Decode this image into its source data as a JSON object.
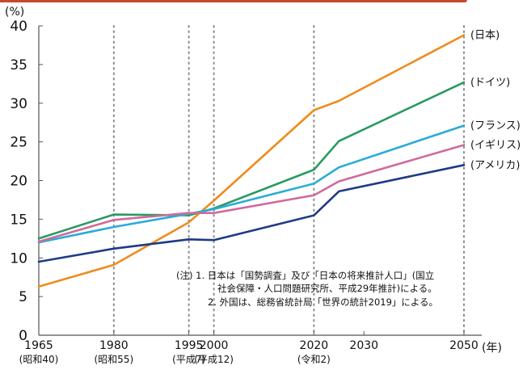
{
  "header": {
    "accent_color": "#c8482e"
  },
  "chart_data": {
    "type": "line",
    "title": "",
    "ylabel": "(%)",
    "xlabel": "(年)",
    "ylim": [
      0,
      40
    ],
    "yticks": [
      0,
      5,
      10,
      15,
      20,
      25,
      30,
      35,
      40
    ],
    "x_labels": [
      {
        "x": 1965,
        "label": "1965",
        "era": "(昭和40)"
      },
      {
        "x": 1980,
        "label": "1980",
        "era": "(昭和55)"
      },
      {
        "x": 1995,
        "label": "1995",
        "era": "(平成7)"
      },
      {
        "x": 2000,
        "label": "2000",
        "era": "(平成12)"
      },
      {
        "x": 2020,
        "label": "2020",
        "era": "(令和2)"
      },
      {
        "x": 2030,
        "label": "2030",
        "era": ""
      },
      {
        "x": 2050,
        "label": "2050",
        "era": ""
      }
    ],
    "gridlines_x": [
      1980,
      1995,
      2000,
      2020,
      2050
    ],
    "xlim": [
      1965,
      2050
    ],
    "series": [
      {
        "name": "(日本)",
        "color": "#ef8c1d",
        "x": [
          1965,
          1980,
          1995,
          2000,
          2020,
          2025,
          2050
        ],
        "values": [
          6.3,
          9.1,
          14.6,
          17.4,
          29.1,
          30.3,
          38.8
        ]
      },
      {
        "name": "(ドイツ)",
        "color": "#2a9a62",
        "x": [
          1965,
          1980,
          1995,
          2000,
          2020,
          2025,
          2050
        ],
        "values": [
          12.5,
          15.6,
          15.5,
          16.4,
          21.4,
          25.1,
          32.7
        ]
      },
      {
        "name": "(フランス)",
        "color": "#29acd8",
        "x": [
          1965,
          1980,
          1995,
          2000,
          2020,
          2025,
          2050
        ],
        "values": [
          12.0,
          14.0,
          15.7,
          16.3,
          19.6,
          21.7,
          27.1
        ]
      },
      {
        "name": "(イギリス)",
        "color": "#d06a9c",
        "x": [
          1965,
          1980,
          1995,
          2000,
          2020,
          2025,
          2050
        ],
        "values": [
          12.1,
          14.9,
          15.8,
          15.8,
          18.1,
          19.9,
          24.6
        ]
      },
      {
        "name": "(アメリカ)",
        "color": "#1f3a86",
        "x": [
          1965,
          1980,
          1995,
          2000,
          2020,
          2025,
          2050
        ],
        "values": [
          9.5,
          11.2,
          12.4,
          12.3,
          15.5,
          18.6,
          22.0
        ]
      }
    ],
    "note": [
      "(注) 1. 日本は「国勢調査」及び「日本の将来推計人口」(国立",
      "社会保障・人口問題研究所、平成29年推計)による。",
      "2. 外国は、総務省統計局「世界の統計2019」による。"
    ]
  }
}
